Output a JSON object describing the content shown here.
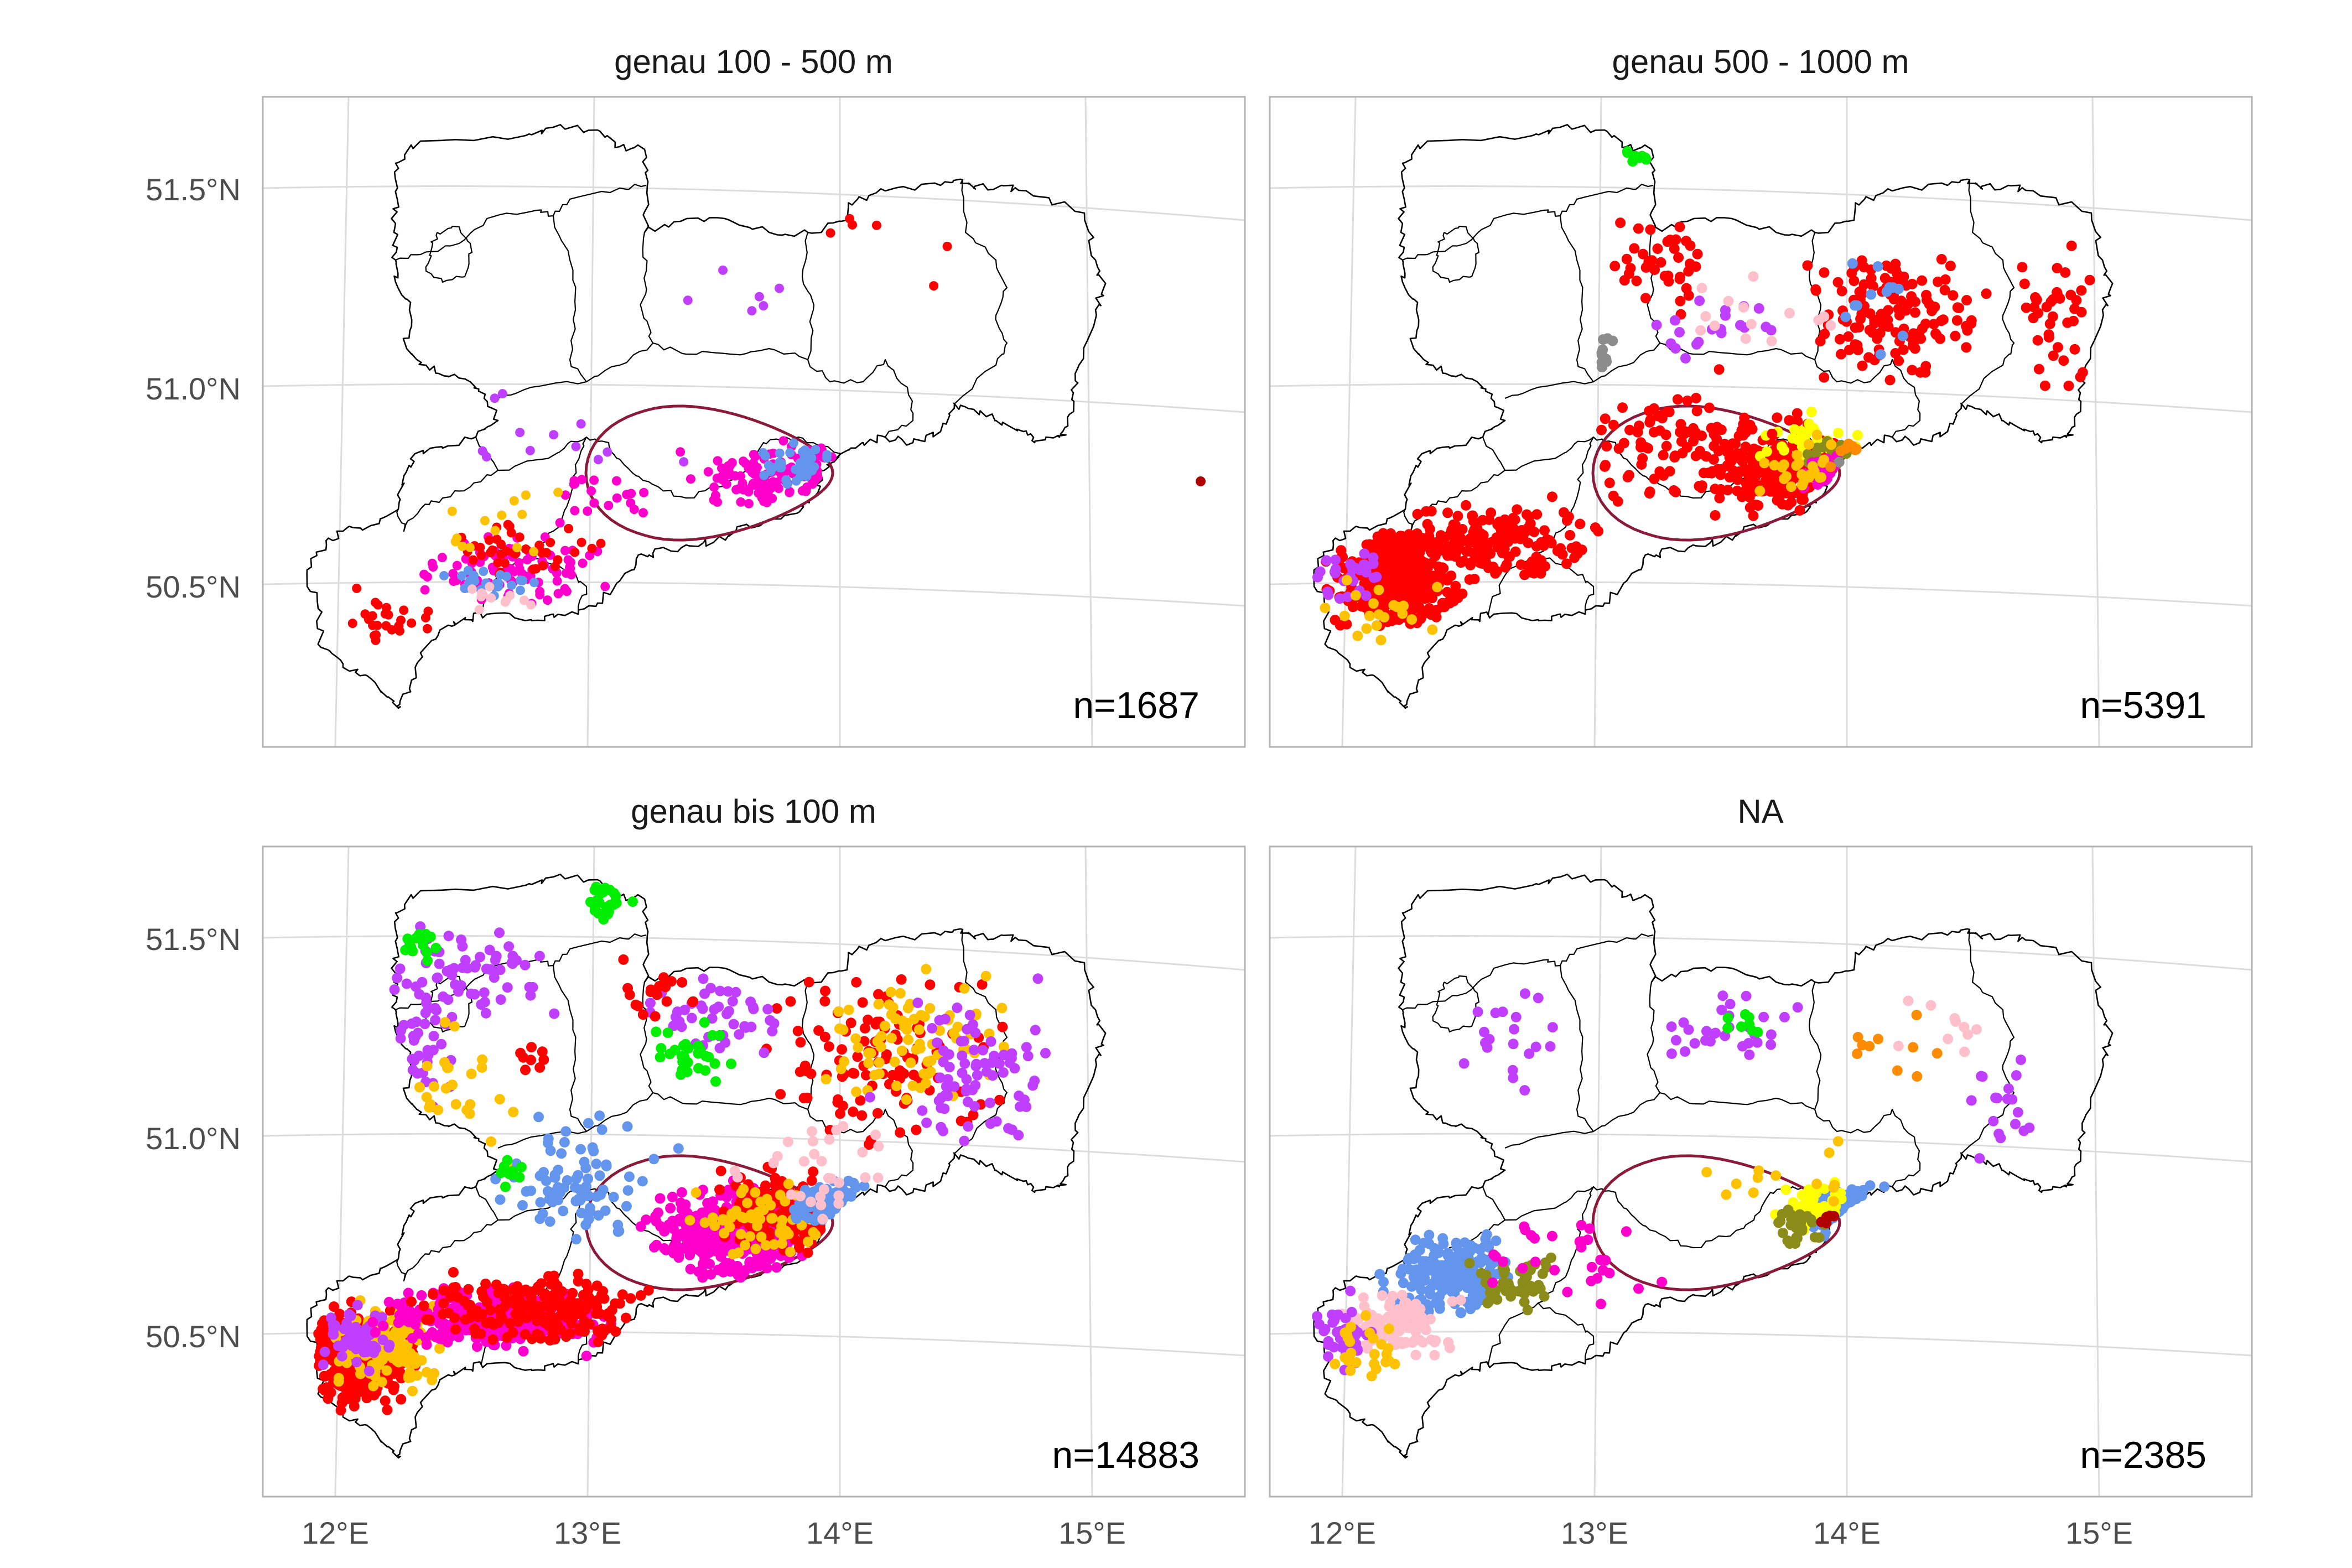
{
  "panels": [
    {
      "title": "genau 100 - 500 m",
      "count_label": "n=1687"
    },
    {
      "title": "genau 500 - 1000 m",
      "count_label": "n=5391"
    },
    {
      "title": "genau bis 100 m",
      "count_label": "n=14883"
    },
    {
      "title": "NA",
      "count_label": "n=2385"
    }
  ],
  "axes": {
    "y_ticks": [
      "51.5°N",
      "51.0°N",
      "50.5°N"
    ],
    "x_ticks": [
      "12°E",
      "13°E",
      "14°E",
      "15°E"
    ]
  },
  "colors": {
    "red": "#ff0000",
    "magenta": "#ff00cc",
    "blue": "#6495ed",
    "purple": "#bf3eff",
    "gold": "#ffc200",
    "yellow": "#ffff00",
    "green": "#00ee00",
    "pink": "#ffc0cb",
    "olive": "#8b8b1a",
    "orange": "#ff8c00",
    "gray": "#8c8c8c",
    "darkred": "#b00000",
    "region_outline": "#8b1a3a",
    "frame": "#b3b3b3",
    "grid": "#dcdcdc"
  },
  "chart_data": {
    "type": "scatter",
    "map_projection": "geographic",
    "y_ticks_deg": [
      51.5,
      51.0,
      50.5
    ],
    "x_ticks_deg": [
      12,
      13,
      14,
      15
    ],
    "grid": true,
    "facets": [
      "genau 100 - 500 m",
      "genau 500 - 1000 m",
      "genau bis 100 m",
      "NA"
    ],
    "counts": [
      1687,
      5391,
      14883,
      2385
    ]
  }
}
